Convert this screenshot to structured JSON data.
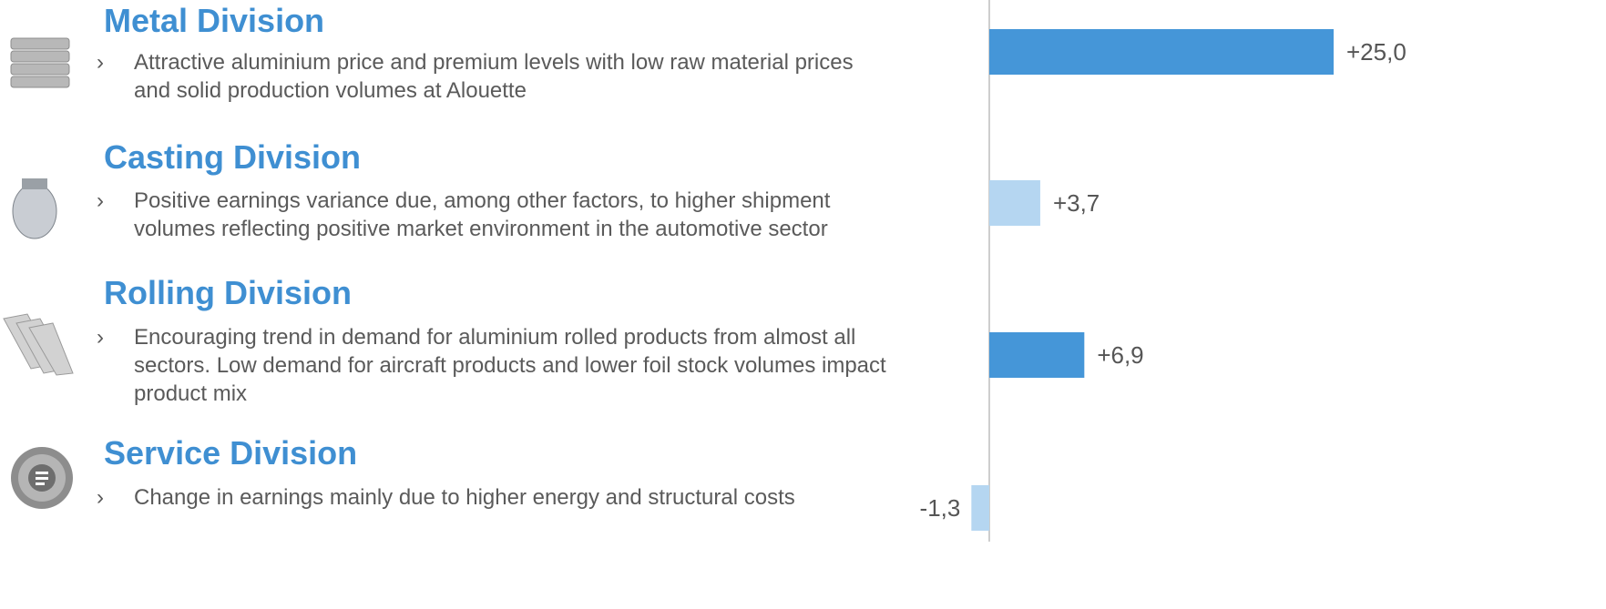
{
  "divisions": [
    {
      "title": "Metal Division",
      "lines": [
        "Attractive aluminium price and premium levels with low raw material prices",
        "and solid production volumes at Alouette"
      ]
    },
    {
      "title": "Casting Division",
      "lines": [
        "Positive earnings variance due, among other factors, to higher shipment",
        "volumes reflecting positive market environment in the automotive sector"
      ]
    },
    {
      "title": "Rolling Division",
      "lines": [
        "Encouraging trend in demand for aluminium rolled products from almost all",
        "sectors. Low demand for aircraft products and lower foil stock volumes impact",
        "product mix"
      ]
    },
    {
      "title": "Service Division",
      "lines": [
        "Change in earnings mainly due to higher energy and structural costs"
      ]
    }
  ],
  "chart_data": {
    "type": "bar",
    "orientation": "horizontal",
    "categories": [
      null,
      null,
      null,
      null
    ],
    "values": [
      25.0,
      3.7,
      6.9,
      -1.3
    ],
    "value_labels": [
      "+25,0",
      "+3,7",
      "+6,9",
      "-1,3"
    ],
    "colors": [
      "#4596d8",
      "#b5d6f1",
      "#4596d8",
      "#b5d6f1"
    ]
  }
}
